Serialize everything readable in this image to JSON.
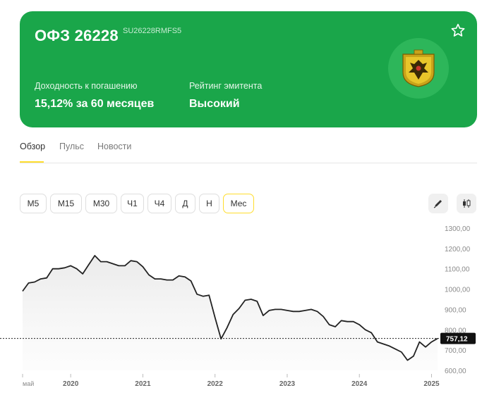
{
  "card": {
    "title": "ОФЗ 26228",
    "isin": "SU26228RMFS5",
    "yield_label": "Доходность к погашению",
    "yield_value": "15,12% за 60 месяцев",
    "rating_label": "Рейтинг эмитента",
    "rating_value": "Высокий",
    "accent": "#1aa64a"
  },
  "tabs": [
    {
      "label": "Обзор",
      "active": true
    },
    {
      "label": "Пульс",
      "active": false
    },
    {
      "label": "Новости",
      "active": false
    }
  ],
  "timeframes": [
    {
      "label": "М5",
      "active": false
    },
    {
      "label": "М15",
      "active": false
    },
    {
      "label": "М30",
      "active": false
    },
    {
      "label": "Ч1",
      "active": false
    },
    {
      "label": "Ч4",
      "active": false
    },
    {
      "label": "Д",
      "active": false
    },
    {
      "label": "Н",
      "active": false
    },
    {
      "label": "Мес",
      "active": true
    }
  ],
  "tools": [
    {
      "icon": "draw-icon"
    },
    {
      "icon": "candlestick-icon"
    }
  ],
  "chart_data": {
    "type": "line",
    "y_ticks": [
      "1300,00",
      "1200,00",
      "1100,00",
      "1000,00",
      "900,00",
      "800,00",
      "700,00",
      "600,00"
    ],
    "ylim": [
      600,
      1300
    ],
    "x_ticks": [
      {
        "label": "май",
        "t": 0,
        "small": true
      },
      {
        "label": "2020",
        "t": 8
      },
      {
        "label": "2021",
        "t": 20
      },
      {
        "label": "2022",
        "t": 32
      },
      {
        "label": "2023",
        "t": 44
      },
      {
        "label": "2024",
        "t": 56
      },
      {
        "label": "2025",
        "t": 68
      }
    ],
    "series": [
      {
        "t": [
          0,
          1,
          2,
          3,
          4,
          5,
          6,
          7,
          8,
          9,
          10,
          11,
          12,
          13,
          14,
          15,
          16,
          17,
          18,
          19,
          20,
          21,
          22,
          23,
          24,
          25,
          26,
          27,
          28,
          29,
          30,
          31,
          32,
          33,
          34,
          35,
          36,
          37,
          38,
          39,
          40,
          41,
          42,
          43,
          44,
          45,
          46,
          47,
          48,
          49,
          50,
          51,
          52,
          53,
          54,
          55,
          56,
          57,
          58,
          59,
          60,
          61,
          62,
          63,
          64,
          65,
          66,
          67,
          68,
          69
        ],
        "values": [
          990,
          1030,
          1035,
          1050,
          1055,
          1100,
          1100,
          1105,
          1115,
          1100,
          1075,
          1120,
          1165,
          1135,
          1135,
          1125,
          1115,
          1115,
          1140,
          1135,
          1110,
          1070,
          1050,
          1050,
          1045,
          1045,
          1065,
          1060,
          1040,
          975,
          965,
          970,
          860,
          755,
          810,
          875,
          905,
          945,
          950,
          940,
          870,
          895,
          900,
          900,
          895,
          890,
          890,
          895,
          900,
          890,
          865,
          825,
          815,
          845,
          840,
          840,
          825,
          800,
          785,
          740,
          730,
          720,
          705,
          690,
          650,
          670,
          740,
          715,
          740,
          757
        ]
      }
    ],
    "current_value": "757,12",
    "current": 757.12,
    "line_color": "#222222"
  }
}
